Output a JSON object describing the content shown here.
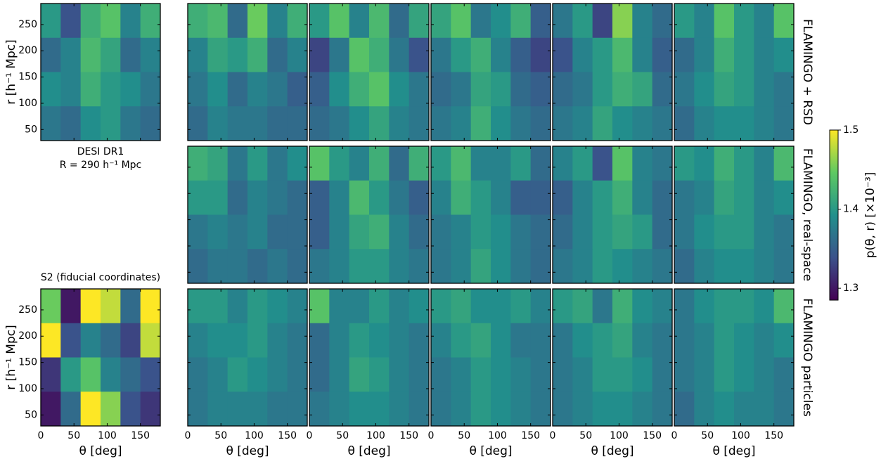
{
  "figure": {
    "xlabel": "θ [deg]",
    "ylabel": "r [h⁻¹ Mpc]",
    "xlim": [
      0,
      180
    ],
    "xticks": [
      0,
      50,
      100,
      150
    ],
    "ylim": [
      29,
      290
    ],
    "yticks": [
      50,
      100,
      150,
      200,
      250
    ],
    "row_labels": [
      {
        "text": "FLAMINGO + RSD",
        "color": "#f06ea9"
      },
      {
        "text": "FLAMINGO, real-space",
        "color": "#6f9be8"
      },
      {
        "text": "FLAMINGO particles",
        "color": "#8c8c8c"
      }
    ],
    "colorbar": {
      "label": "p(θ, r) [×10⁻³]",
      "lim": [
        1.285,
        1.5
      ],
      "ticks": [
        1.3,
        1.4,
        1.5
      ],
      "colormap": [
        "#440154",
        "#3b528b",
        "#21918c",
        "#5ec962",
        "#fde725"
      ]
    }
  },
  "chart_data": [
    {
      "type": "heatmap",
      "annotation": [
        "DESI DR1",
        "R = 290 h⁻¹ Mpc"
      ],
      "z": [
        [
          1.4,
          1.34,
          1.42,
          1.44,
          1.38,
          1.42
        ],
        [
          1.36,
          1.38,
          1.43,
          1.41,
          1.36,
          1.38
        ],
        [
          1.39,
          1.38,
          1.42,
          1.4,
          1.39,
          1.37
        ],
        [
          1.37,
          1.36,
          1.39,
          1.4,
          1.37,
          1.36
        ]
      ]
    },
    {
      "type": "heatmap",
      "z": [
        [
          1.42,
          1.43,
          1.36,
          1.45,
          1.38,
          1.42
        ],
        [
          1.38,
          1.41,
          1.4,
          1.42,
          1.36,
          1.38
        ],
        [
          1.37,
          1.39,
          1.36,
          1.38,
          1.37,
          1.35
        ],
        [
          1.36,
          1.38,
          1.37,
          1.37,
          1.36,
          1.36
        ]
      ]
    },
    {
      "type": "heatmap",
      "z": [
        [
          1.4,
          1.44,
          1.38,
          1.43,
          1.36,
          1.41
        ],
        [
          1.33,
          1.37,
          1.44,
          1.42,
          1.37,
          1.34
        ],
        [
          1.35,
          1.39,
          1.42,
          1.44,
          1.39,
          1.37
        ],
        [
          1.36,
          1.37,
          1.39,
          1.41,
          1.38,
          1.37
        ]
      ]
    },
    {
      "type": "heatmap",
      "z": [
        [
          1.41,
          1.44,
          1.37,
          1.39,
          1.42,
          1.35
        ],
        [
          1.37,
          1.4,
          1.42,
          1.38,
          1.35,
          1.33
        ],
        [
          1.36,
          1.37,
          1.41,
          1.4,
          1.36,
          1.35
        ],
        [
          1.37,
          1.38,
          1.42,
          1.39,
          1.37,
          1.36
        ]
      ]
    },
    {
      "type": "heatmap",
      "z": [
        [
          1.37,
          1.4,
          1.33,
          1.46,
          1.38,
          1.36
        ],
        [
          1.34,
          1.38,
          1.4,
          1.43,
          1.38,
          1.35
        ],
        [
          1.36,
          1.37,
          1.4,
          1.42,
          1.41,
          1.36
        ],
        [
          1.37,
          1.38,
          1.41,
          1.39,
          1.38,
          1.37
        ]
      ]
    },
    {
      "type": "heatmap",
      "z": [
        [
          1.4,
          1.38,
          1.44,
          1.4,
          1.38,
          1.44
        ],
        [
          1.36,
          1.38,
          1.42,
          1.4,
          1.38,
          1.39
        ],
        [
          1.37,
          1.39,
          1.41,
          1.4,
          1.38,
          1.37
        ],
        [
          1.36,
          1.38,
          1.39,
          1.39,
          1.38,
          1.37
        ]
      ]
    },
    {
      "type": "heatmap",
      "z": [
        [
          1.42,
          1.41,
          1.37,
          1.4,
          1.37,
          1.39
        ],
        [
          1.4,
          1.4,
          1.36,
          1.38,
          1.37,
          1.36
        ],
        [
          1.37,
          1.38,
          1.37,
          1.38,
          1.36,
          1.36
        ],
        [
          1.36,
          1.37,
          1.37,
          1.36,
          1.37,
          1.36
        ]
      ]
    },
    {
      "type": "heatmap",
      "z": [
        [
          1.44,
          1.4,
          1.38,
          1.42,
          1.36,
          1.42
        ],
        [
          1.35,
          1.38,
          1.43,
          1.4,
          1.37,
          1.35
        ],
        [
          1.35,
          1.38,
          1.41,
          1.42,
          1.38,
          1.36
        ],
        [
          1.37,
          1.38,
          1.4,
          1.4,
          1.38,
          1.37
        ]
      ]
    },
    {
      "type": "heatmap",
      "z": [
        [
          1.4,
          1.43,
          1.38,
          1.38,
          1.4,
          1.36
        ],
        [
          1.38,
          1.42,
          1.4,
          1.38,
          1.35,
          1.35
        ],
        [
          1.37,
          1.38,
          1.4,
          1.39,
          1.37,
          1.36
        ],
        [
          1.37,
          1.38,
          1.41,
          1.39,
          1.37,
          1.36
        ]
      ]
    },
    {
      "type": "heatmap",
      "z": [
        [
          1.38,
          1.4,
          1.34,
          1.44,
          1.38,
          1.37
        ],
        [
          1.35,
          1.38,
          1.4,
          1.42,
          1.38,
          1.36
        ],
        [
          1.36,
          1.38,
          1.4,
          1.41,
          1.4,
          1.36
        ],
        [
          1.37,
          1.38,
          1.4,
          1.39,
          1.38,
          1.37
        ]
      ]
    },
    {
      "type": "heatmap",
      "z": [
        [
          1.4,
          1.39,
          1.42,
          1.4,
          1.38,
          1.43
        ],
        [
          1.37,
          1.38,
          1.41,
          1.4,
          1.38,
          1.39
        ],
        [
          1.37,
          1.39,
          1.4,
          1.4,
          1.38,
          1.37
        ],
        [
          1.36,
          1.38,
          1.39,
          1.39,
          1.38,
          1.37
        ]
      ]
    },
    {
      "type": "heatmap",
      "title": "S2 (fiducial coordinates)",
      "z": [
        [
          1.45,
          1.3,
          1.5,
          1.48,
          1.36,
          1.5
        ],
        [
          1.5,
          1.34,
          1.38,
          1.36,
          1.33,
          1.48
        ],
        [
          1.32,
          1.4,
          1.44,
          1.38,
          1.36,
          1.34
        ],
        [
          1.3,
          1.36,
          1.5,
          1.46,
          1.34,
          1.32
        ]
      ]
    },
    {
      "type": "heatmap",
      "z": [
        [
          1.4,
          1.4,
          1.38,
          1.4,
          1.39,
          1.38
        ],
        [
          1.38,
          1.39,
          1.39,
          1.4,
          1.38,
          1.37
        ],
        [
          1.37,
          1.38,
          1.4,
          1.39,
          1.38,
          1.37
        ],
        [
          1.37,
          1.38,
          1.38,
          1.38,
          1.37,
          1.37
        ]
      ]
    },
    {
      "type": "heatmap",
      "z": [
        [
          1.44,
          1.38,
          1.38,
          1.4,
          1.38,
          1.39
        ],
        [
          1.36,
          1.38,
          1.4,
          1.39,
          1.38,
          1.37
        ],
        [
          1.36,
          1.38,
          1.41,
          1.4,
          1.38,
          1.37
        ],
        [
          1.37,
          1.38,
          1.39,
          1.39,
          1.38,
          1.37
        ]
      ]
    },
    {
      "type": "heatmap",
      "z": [
        [
          1.4,
          1.41,
          1.39,
          1.39,
          1.4,
          1.38
        ],
        [
          1.38,
          1.4,
          1.41,
          1.39,
          1.37,
          1.37
        ],
        [
          1.37,
          1.38,
          1.4,
          1.39,
          1.38,
          1.37
        ],
        [
          1.37,
          1.38,
          1.4,
          1.39,
          1.38,
          1.37
        ]
      ]
    },
    {
      "type": "heatmap",
      "z": [
        [
          1.4,
          1.41,
          1.37,
          1.42,
          1.39,
          1.38
        ],
        [
          1.37,
          1.39,
          1.4,
          1.41,
          1.38,
          1.37
        ],
        [
          1.37,
          1.38,
          1.4,
          1.4,
          1.39,
          1.37
        ],
        [
          1.37,
          1.38,
          1.39,
          1.39,
          1.38,
          1.37
        ]
      ]
    },
    {
      "type": "heatmap",
      "z": [
        [
          1.37,
          1.39,
          1.4,
          1.4,
          1.39,
          1.43
        ],
        [
          1.37,
          1.38,
          1.4,
          1.39,
          1.38,
          1.39
        ],
        [
          1.37,
          1.38,
          1.4,
          1.39,
          1.38,
          1.37
        ],
        [
          1.36,
          1.38,
          1.39,
          1.38,
          1.38,
          1.37
        ]
      ]
    }
  ]
}
